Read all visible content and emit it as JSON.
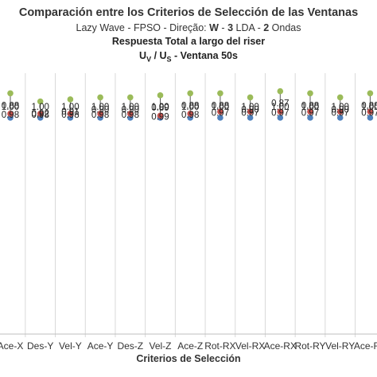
{
  "chart_data": {
    "type": "scatter",
    "title": "Comparación entre los Criterios de Selección de las Ventanas",
    "subtitle": {
      "plain": "Lazy Wave - FPSO - Direção: ",
      "dir": "W",
      "sep1": " - ",
      "lda_num": "3",
      "lda": " LDA - ",
      "ondas_num": "2",
      "ondas": " Ondas"
    },
    "subtitle2": "Respuesta Total a largo del riser",
    "subtitle3": {
      "u1": "U",
      "s1": "V",
      "mid": " / U",
      "s2": "S",
      "rest": " - Ventana 50s"
    },
    "xlabel": "Criterios de Selección",
    "categories": [
      "Ace-X",
      "Des-Y",
      "Vel-Y",
      "Ace-Y",
      "Des-Z",
      "Vel-Z",
      "Ace-Z",
      "Rot-RX",
      "Vel-RX",
      "Ace-RX",
      "Rot-RY",
      "Vel-RY",
      "Ace-RY"
    ],
    "series": [
      {
        "values": [
          1.0,
          1.0,
          1.0,
          1.0,
          1.0,
          1.0,
          1.0,
          1.0,
          1.0,
          1.0,
          1.0,
          1.0,
          1.0
        ],
        "color": "#4f81bd"
      },
      {
        "values": [
          0.98,
          0.98,
          0.98,
          0.98,
          0.98,
          0.99,
          0.98,
          0.97,
          0.97,
          0.97,
          0.97,
          0.97,
          0.97
        ],
        "color": "#c0504d"
      },
      {
        "values": [
          0.88,
          0.92,
          0.91,
          0.9,
          0.9,
          0.89,
          0.88,
          0.88,
          0.9,
          0.87,
          0.88,
          0.9,
          0.88
        ],
        "color": "#9bbb59"
      }
    ],
    "labels": {
      "s0": [
        "1.00",
        "1.00",
        "1.00",
        "1.00",
        "1.00",
        "1.00",
        "1.00",
        "1.00",
        "1.00",
        "1.00",
        "1.00",
        "1.00",
        "1.00"
      ],
      "s1": [
        "0.98",
        "0.98",
        "0.98",
        "0.98",
        "0.98",
        "0.99",
        "0.98",
        "0.97",
        "0.97",
        "0.97",
        "0.97",
        "0.97",
        "0.97"
      ],
      "s2": [
        "0.88",
        "0.92",
        "0.91",
        "0.90",
        "0.90",
        "0.89",
        "0.88",
        "0.88",
        "0.90",
        "0.87",
        "0.88",
        "0.90",
        "0.88"
      ]
    },
    "grid": true
  }
}
